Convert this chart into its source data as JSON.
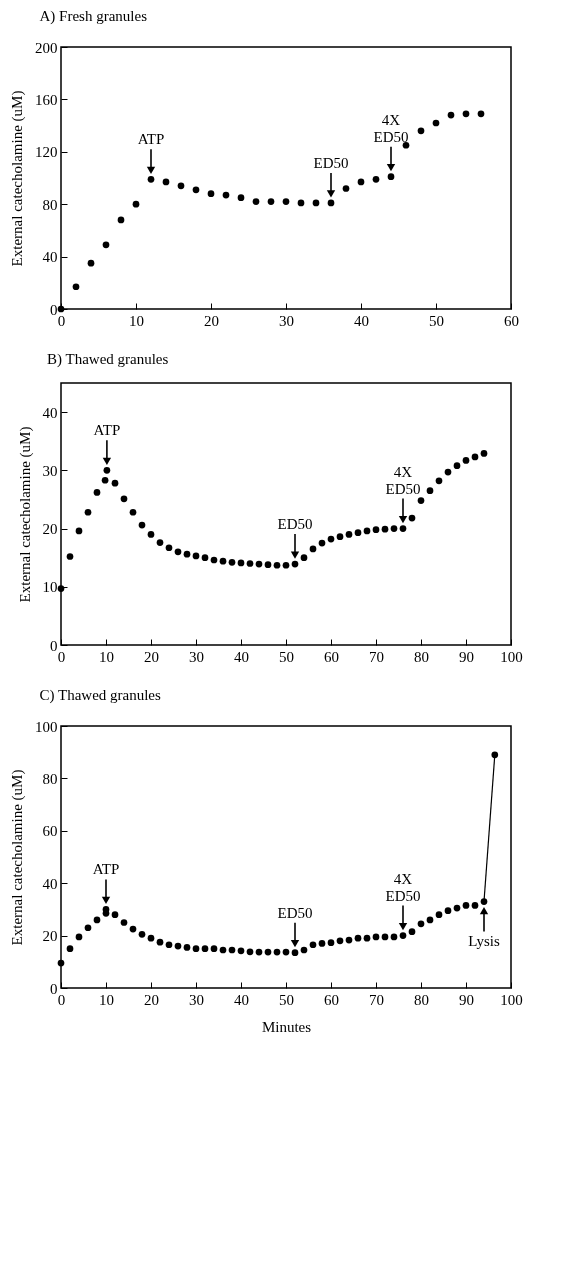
{
  "chart_data": [
    {
      "type": "scatter",
      "title": "A) Fresh granules",
      "ylabel": "External catecholamine (uM)",
      "xlim": [
        0,
        60
      ],
      "ylim": [
        0,
        200
      ],
      "xticks": [
        0,
        10,
        20,
        30,
        40,
        50,
        60
      ],
      "yticks": [
        0,
        40,
        80,
        120,
        160,
        200
      ],
      "marker": "circle",
      "series": [
        {
          "color": "#000000",
          "x": [
            0,
            2,
            4,
            6,
            8,
            10,
            12,
            14,
            16,
            18,
            20,
            22,
            24,
            26,
            28,
            30,
            32,
            34,
            36,
            38,
            40,
            42,
            44,
            46,
            48,
            50,
            52,
            54,
            56
          ],
          "values": [
            0,
            17,
            35,
            49,
            68,
            80,
            99,
            97,
            94,
            91,
            88,
            87,
            85,
            82,
            82,
            82,
            81,
            81,
            81,
            92,
            97,
            99,
            101,
            125,
            136,
            142,
            148,
            149,
            149
          ]
        }
      ],
      "annotations": [
        {
          "text": "ATP",
          "x": 12,
          "y": 99
        },
        {
          "text": "ED50",
          "x": 36,
          "y": 81
        },
        {
          "text": "4X\nED50",
          "x": 44,
          "y": 101
        }
      ]
    },
    {
      "type": "scatter",
      "title": "B) Thawed granules",
      "ylabel": "External catecholamine (uM)",
      "xlim": [
        0,
        100
      ],
      "ylim": [
        0,
        45
      ],
      "xticks": [
        0,
        10,
        20,
        30,
        40,
        50,
        60,
        70,
        80,
        90,
        100
      ],
      "yticks": [
        0,
        10,
        20,
        30,
        40
      ],
      "marker": "circle",
      "series": [
        {
          "color": "#000000",
          "x": [
            0,
            2,
            4,
            6,
            8,
            9.8,
            10.2,
            12,
            14,
            16,
            18,
            20,
            22,
            24,
            26,
            28,
            30,
            32,
            34,
            36,
            38,
            40,
            42,
            44,
            46,
            48,
            50,
            52,
            54,
            56,
            58,
            60,
            62,
            64,
            66,
            68,
            70,
            72,
            74,
            76,
            78,
            80,
            82,
            84,
            86,
            88,
            90,
            92,
            94
          ],
          "values": [
            9.7,
            15.2,
            19.6,
            22.8,
            26.2,
            28.3,
            30,
            27.8,
            25.1,
            22.8,
            20.6,
            19,
            17.6,
            16.7,
            16,
            15.6,
            15.3,
            15,
            14.6,
            14.4,
            14.2,
            14.1,
            14,
            13.9,
            13.8,
            13.7,
            13.7,
            13.9,
            15,
            16.5,
            17.5,
            18.2,
            18.6,
            19,
            19.3,
            19.6,
            19.8,
            19.9,
            20,
            20,
            21.8,
            24.8,
            26.5,
            28.2,
            29.7,
            30.8,
            31.7,
            32.3,
            32.9
          ]
        }
      ],
      "annotations": [
        {
          "text": "ATP",
          "x": 10.2,
          "y": 30
        },
        {
          "text": "ED50",
          "x": 52,
          "y": 13.9
        },
        {
          "text": "4X\nED50",
          "x": 76,
          "y": 20
        }
      ]
    },
    {
      "type": "scatter",
      "title": "C) Thawed granules",
      "xlabel": "Minutes",
      "ylabel": "External catecholamine (uM)",
      "xlim": [
        0,
        100
      ],
      "ylim": [
        0,
        100
      ],
      "xticks": [
        0,
        10,
        20,
        30,
        40,
        50,
        60,
        70,
        80,
        90,
        100
      ],
      "yticks": [
        0,
        20,
        40,
        60,
        80,
        100
      ],
      "marker": "circle",
      "series": [
        {
          "color": "#000000",
          "x": [
            0,
            2,
            4,
            6,
            8,
            10,
            10,
            12,
            14,
            16,
            18,
            20,
            22,
            24,
            26,
            28,
            30,
            32,
            34,
            36,
            38,
            40,
            42,
            44,
            46,
            48,
            50,
            52,
            54,
            56,
            58,
            60,
            62,
            64,
            66,
            68,
            70,
            72,
            74,
            76,
            78,
            80,
            82,
            84,
            86,
            88,
            90,
            92,
            94,
            96.4
          ],
          "values": [
            9.5,
            15,
            19.5,
            23,
            26,
            28.5,
            30,
            28,
            25,
            22.5,
            20.5,
            19,
            17.5,
            16.5,
            16,
            15.5,
            15,
            15,
            15,
            14.5,
            14.5,
            14.2,
            13.8,
            13.7,
            13.7,
            13.7,
            13.7,
            13.5,
            14.5,
            16.5,
            17,
            17.3,
            18,
            18.3,
            19,
            19,
            19.5,
            19.5,
            19.5,
            20,
            21.5,
            24.5,
            26,
            28,
            29.5,
            30.5,
            31.5,
            31.5,
            33,
            89
          ]
        },
        {
          "type": "line",
          "marker": "none",
          "color": "#000000",
          "x": [
            94,
            96.4
          ],
          "values": [
            33,
            89
          ]
        }
      ],
      "annotations": [
        {
          "text": "ATP",
          "x": 10,
          "y": 30
        },
        {
          "text": "ED50",
          "x": 52,
          "y": 13.5
        },
        {
          "text": "4X\nED50",
          "x": 76,
          "y": 20
        },
        {
          "text": "Lysis",
          "x": 94,
          "y": 33
        }
      ]
    }
  ]
}
